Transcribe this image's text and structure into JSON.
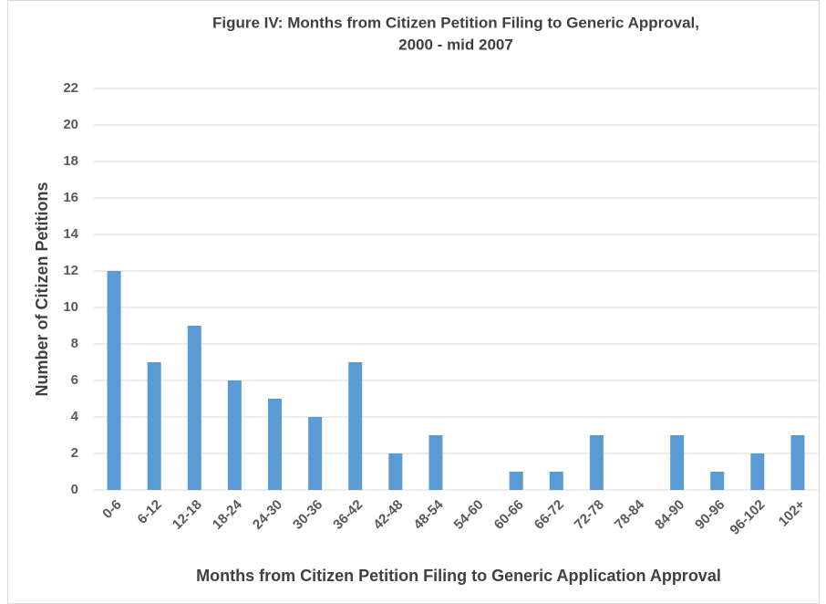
{
  "chart_data": {
    "type": "bar",
    "title": [
      "Figure IV: Months from Citizen Petition Filing to Generic Approval,",
      "2000 - mid 2007"
    ],
    "x_label": "Months from Citizen Petition Filing to Generic Application Approval",
    "y_label": "Number of Citizen Petitions",
    "categories": [
      "0-6",
      "6-12",
      "12-18",
      "18-24",
      "24-30",
      "30-36",
      "36-42",
      "42-48",
      "48-54",
      "54-60",
      "60-66",
      "66-72",
      "72-78",
      "78-84",
      "84-90",
      "90-96",
      "96-102",
      "102+"
    ],
    "values": [
      12,
      7,
      9,
      6,
      5,
      4,
      7,
      2,
      3,
      0,
      1,
      1,
      3,
      0,
      3,
      1,
      2,
      3
    ],
    "color": "#5b9bd5",
    "ylim": [
      0,
      22
    ],
    "yticks": [
      0,
      2,
      4,
      6,
      8,
      10,
      12,
      14,
      16,
      18,
      20,
      22
    ],
    "grid": true
  }
}
